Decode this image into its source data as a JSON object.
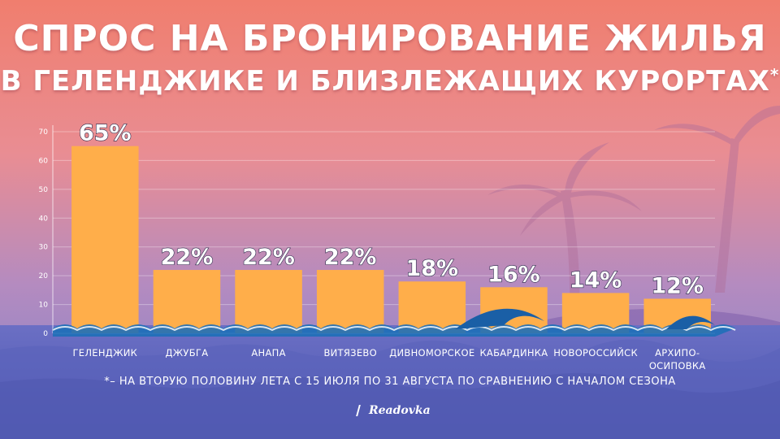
{
  "header": {
    "title_line1": "СПРОС НА БРОНИРОВАНИЕ ЖИЛЬЯ",
    "title_line2": "В ГЕЛЕНДЖИКЕ И БЛИЗЛЕЖАЩИХ КУРОРТАХ",
    "title_mark": "*"
  },
  "footnote": "*– НА ВТОРУЮ ПОЛОВИНУ ЛЕТА С 15 ИЮЛЯ ПО 31 АВГУСТА ПО СРАВНЕНИЮ С НАЧАЛОМ СЕЗОНА",
  "logo": "Readovka",
  "colors": {
    "bar": "#FFAE4A",
    "text": "#FFFFFF",
    "wave": "#1E6FB8"
  },
  "chart_data": {
    "type": "bar",
    "categories": [
      "ГЕЛЕНДЖИК",
      "ДЖУБГА",
      "АНАПА",
      "ВИТЯЗЕВО",
      "ДИВНОМОРСКОЕ",
      "КАБАРДИНКА",
      "НОВОРОССИЙСК",
      "АРХИПО-\nОСИПОВКА"
    ],
    "values": [
      65,
      22,
      22,
      22,
      18,
      16,
      14,
      12
    ],
    "data_labels": [
      "65%",
      "22%",
      "22%",
      "22%",
      "18%",
      "16%",
      "14%",
      "12%"
    ],
    "yticks": [
      0,
      10,
      20,
      30,
      40,
      50,
      60,
      70
    ],
    "ylim": [
      0,
      70
    ],
    "grid": true
  }
}
